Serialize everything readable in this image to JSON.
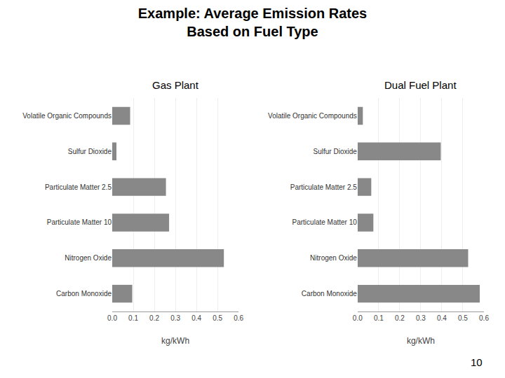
{
  "title": "Example: Average Emission Rates",
  "subtitle": "Based on Fuel Type",
  "annotations": [
    "10"
  ],
  "chart_data": [
    {
      "type": "bar",
      "orientation": "horizontal",
      "title": "Gas Plant",
      "categories": [
        "Carbon Monoxide",
        "Nitrogen Oxide",
        "Particulate Matter 10",
        "Particulate Matter 2.5",
        "Sulfur Dioxide",
        "Volatile Organic Compounds"
      ],
      "values": [
        0.095,
        0.53,
        0.27,
        0.255,
        0.02,
        0.085
      ],
      "color": "#888888",
      "xlabel": "kg/kWh",
      "xlim": [
        0.0,
        0.6
      ],
      "xticks": [
        {
          "value": 0.0,
          "label": "0.0"
        },
        0.1,
        0.2,
        0.3,
        0.4,
        0.5,
        0.6
      ],
      "grid": true
    },
    {
      "type": "bar",
      "orientation": "horizontal",
      "title": "Dual Fuel Plant",
      "categories": [
        "Carbon Monoxide",
        "Nitrogen Oxide",
        "Particulate Matter 10",
        "Particulate Matter 2.5",
        "Sulfur Dioxide",
        "Volatile Organic Compounds"
      ],
      "values": [
        0.58,
        0.525,
        0.075,
        0.065,
        0.395,
        0.025
      ],
      "color": "#888888",
      "xlabel": "kg/kWh",
      "xlim": [
        0.0,
        0.6
      ],
      "xticks": [
        {
          "value": 0.0,
          "label": "0.0"
        },
        0.1,
        0.2,
        0.3,
        0.4,
        0.5,
        0.6
      ],
      "grid": true
    }
  ]
}
